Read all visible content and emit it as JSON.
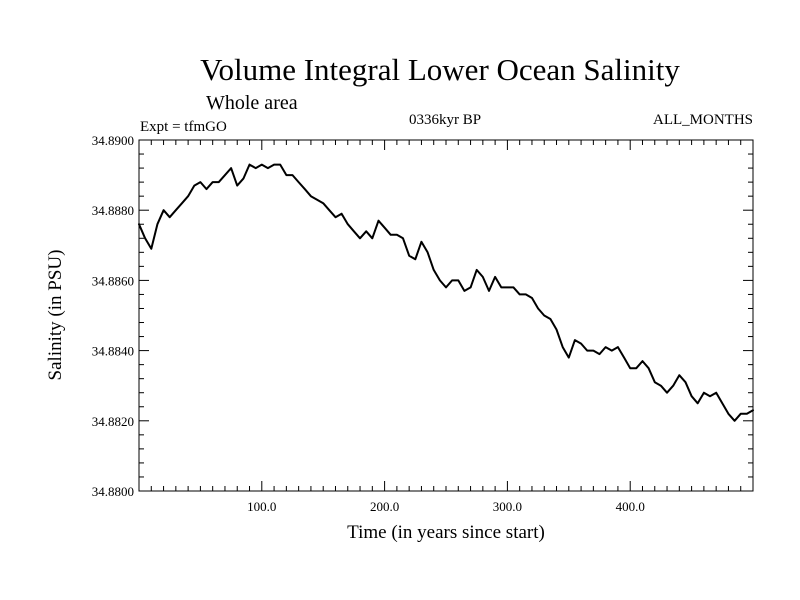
{
  "chart_data": {
    "type": "line",
    "title": "Volume Integral Lower Ocean Salinity",
    "subtitle": "Whole area",
    "left_note": "Expt = tfmGO",
    "center_note": "0336kyr BP",
    "right_note": "ALL_MONTHS",
    "xlabel": "Time (in years since start)",
    "ylabel": "Salinity (in PSU)",
    "xlim": [
      0,
      500
    ],
    "ylim": [
      34.88,
      34.89
    ],
    "xticks": [
      {
        "value": 100,
        "label": "100.0"
      },
      {
        "value": 200,
        "label": "200.0"
      },
      {
        "value": 300,
        "label": "300.0"
      },
      {
        "value": 400,
        "label": "400.0"
      }
    ],
    "yticks": [
      {
        "value": 34.88,
        "label": "34.8800"
      },
      {
        "value": 34.882,
        "label": "34.8820"
      },
      {
        "value": 34.884,
        "label": "34.8840"
      },
      {
        "value": 34.886,
        "label": "34.8860"
      },
      {
        "value": 34.888,
        "label": "34.8880"
      },
      {
        "value": 34.89,
        "label": "34.8900"
      }
    ],
    "grid": false,
    "series": [
      {
        "color": "#000000",
        "x": [
          0,
          5,
          10,
          15,
          20,
          25,
          30,
          35,
          40,
          45,
          50,
          55,
          60,
          65,
          70,
          75,
          80,
          85,
          90,
          95,
          100,
          105,
          110,
          115,
          120,
          125,
          130,
          135,
          140,
          145,
          150,
          155,
          160,
          165,
          170,
          175,
          180,
          185,
          190,
          195,
          200,
          205,
          210,
          215,
          220,
          225,
          230,
          235,
          240,
          245,
          250,
          255,
          260,
          265,
          270,
          275,
          280,
          285,
          290,
          295,
          300,
          305,
          310,
          315,
          320,
          325,
          330,
          335,
          340,
          345,
          350,
          355,
          360,
          365,
          370,
          375,
          380,
          385,
          390,
          395,
          400,
          405,
          410,
          415,
          420,
          425,
          430,
          435,
          440,
          445,
          450,
          455,
          460,
          465,
          470,
          475,
          480,
          485,
          490,
          495,
          500
        ],
        "y": [
          34.8876,
          34.8872,
          34.8869,
          34.8876,
          34.888,
          34.8878,
          34.888,
          34.8882,
          34.8884,
          34.8887,
          34.8888,
          34.8886,
          34.8888,
          34.8888,
          34.889,
          34.8892,
          34.8887,
          34.8889,
          34.8893,
          34.8892,
          34.8893,
          34.8892,
          34.8893,
          34.8893,
          34.889,
          34.889,
          34.8888,
          34.8886,
          34.8884,
          34.8883,
          34.8882,
          34.888,
          34.8878,
          34.8879,
          34.8876,
          34.8874,
          34.8872,
          34.8874,
          34.8872,
          34.8877,
          34.8875,
          34.8873,
          34.8873,
          34.8872,
          34.8867,
          34.8866,
          34.8871,
          34.8868,
          34.8863,
          34.886,
          34.8858,
          34.886,
          34.886,
          34.8857,
          34.8858,
          34.8863,
          34.8861,
          34.8857,
          34.8861,
          34.8858,
          34.8858,
          34.8858,
          34.8856,
          34.8856,
          34.8855,
          34.8852,
          34.885,
          34.8849,
          34.8846,
          34.8841,
          34.8838,
          34.8843,
          34.8842,
          34.884,
          34.884,
          34.8839,
          34.8841,
          34.884,
          34.8841,
          34.8838,
          34.8835,
          34.8835,
          34.8837,
          34.8835,
          34.8831,
          34.883,
          34.8828,
          34.883,
          34.8833,
          34.8831,
          34.8827,
          34.8825,
          34.8828,
          34.8827,
          34.8828,
          34.8825,
          34.8822,
          34.882,
          34.8822,
          34.8822,
          34.8823
        ]
      }
    ]
  }
}
